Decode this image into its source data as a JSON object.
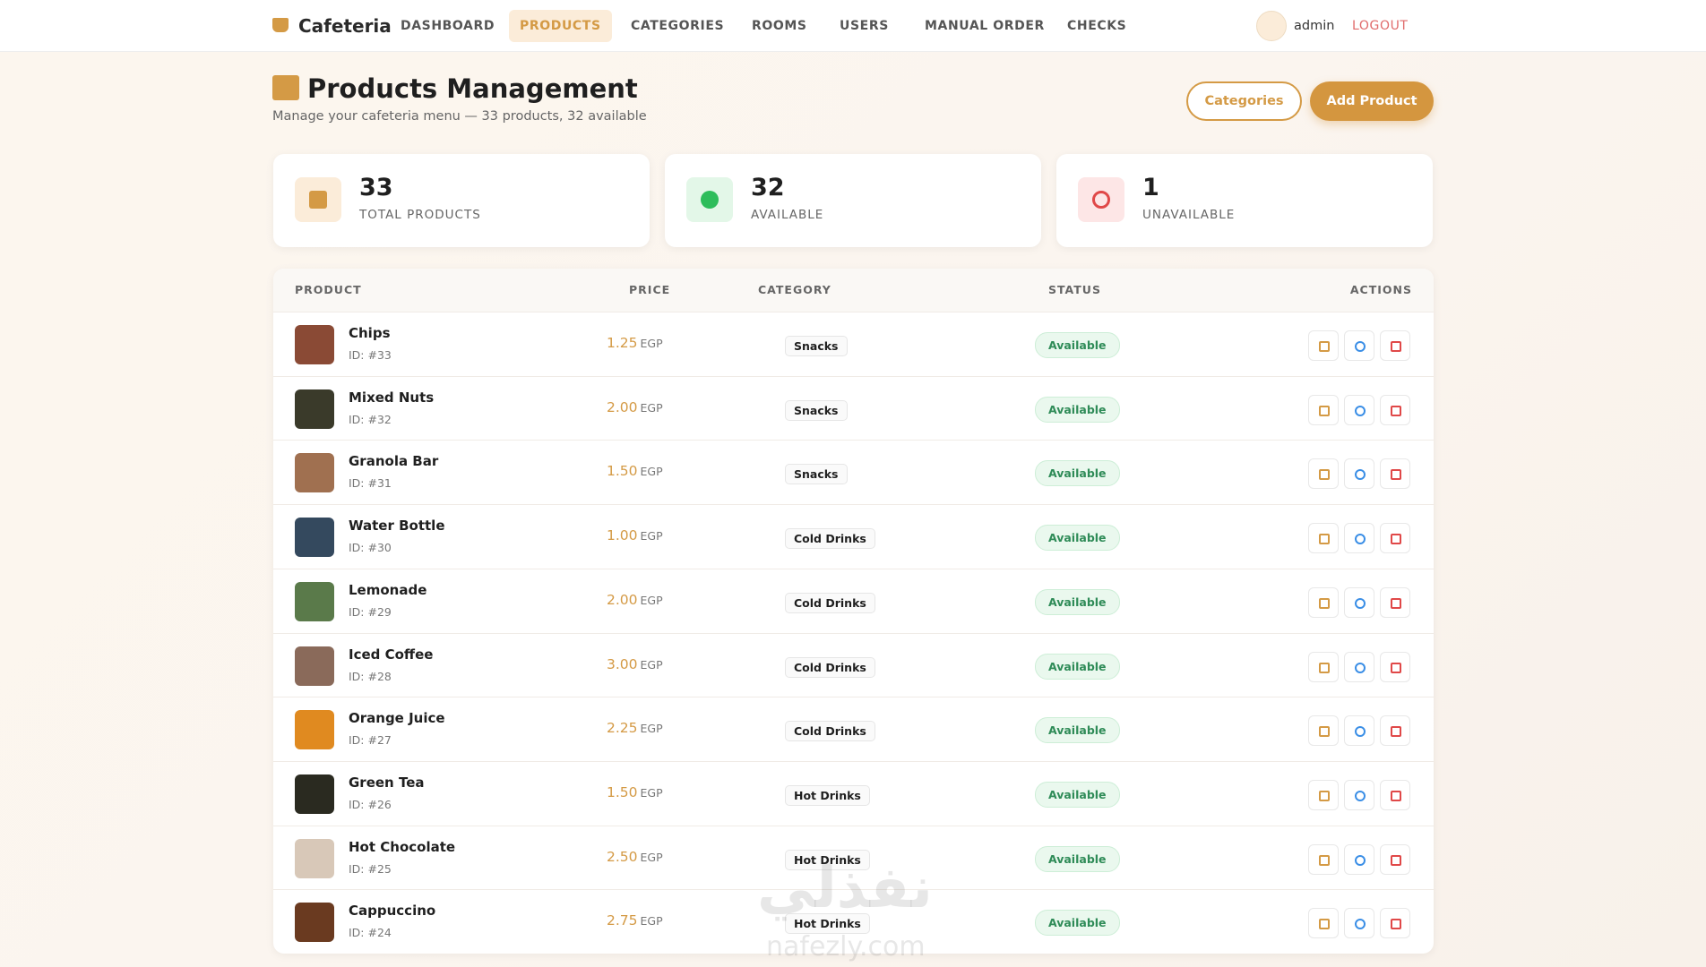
{
  "nav": {
    "brand": "Cafeteria",
    "items": [
      "DASHBOARD",
      "PRODUCTS",
      "CATEGORIES",
      "ROOMS",
      "USERS",
      "MANUAL ORDER",
      "CHECKS"
    ],
    "user": "admin",
    "logout": "LOGOUT"
  },
  "header": {
    "title": "Products Management",
    "subtitle": "Manage your cafeteria menu — 33 products, 32 available",
    "buttons": [
      "Categories",
      "Add Product"
    ]
  },
  "stats": [
    {
      "value": 33,
      "label": "TOTAL PRODUCTS"
    },
    {
      "value": 32,
      "label": "AVAILABLE"
    },
    {
      "value": 1,
      "label": "UNAVAILABLE"
    }
  ],
  "table": {
    "headers": [
      "PRODUCT",
      "PRICE",
      "CATEGORY",
      "STATUS",
      "ACTIONS"
    ],
    "rows": [
      {
        "name": "Chips",
        "id": "ID: #33",
        "price": "1.25",
        "currency": "EGP",
        "category": "Snacks",
        "status": "Available"
      },
      {
        "name": "Mixed Nuts",
        "id": "ID: #32",
        "price": "2.00",
        "currency": "EGP",
        "category": "Snacks",
        "status": "Available"
      },
      {
        "name": "Granola Bar",
        "id": "ID: #31",
        "price": "1.50",
        "currency": "EGP",
        "category": "Snacks",
        "status": "Available"
      },
      {
        "name": "Water Bottle",
        "id": "ID: #30",
        "price": "1.00",
        "currency": "EGP",
        "category": "Cold Drinks",
        "status": "Available"
      },
      {
        "name": "Lemonade",
        "id": "ID: #29",
        "price": "2.00",
        "currency": "EGP",
        "category": "Cold Drinks",
        "status": "Available"
      },
      {
        "name": "Iced Coffee",
        "id": "ID: #28",
        "price": "3.00",
        "currency": "EGP",
        "category": "Cold Drinks",
        "status": "Available"
      },
      {
        "name": "Orange Juice",
        "id": "ID: #27",
        "price": "2.25",
        "currency": "EGP",
        "category": "Cold Drinks",
        "status": "Available"
      },
      {
        "name": "Green Tea",
        "id": "ID: #26",
        "price": "1.50",
        "currency": "EGP",
        "category": "Hot Drinks",
        "status": "Available"
      },
      {
        "name": "Hot Chocolate",
        "id": "ID: #25",
        "price": "2.50",
        "currency": "EGP",
        "category": "Hot Drinks",
        "status": "Available"
      },
      {
        "name": "Cappuccino",
        "id": "ID: #24",
        "price": "2.75",
        "currency": "EGP",
        "category": "Hot Drinks",
        "status": "Available"
      }
    ]
  },
  "watermark": {
    "arabic": "نفذلي",
    "latin": "nafezly.com"
  }
}
